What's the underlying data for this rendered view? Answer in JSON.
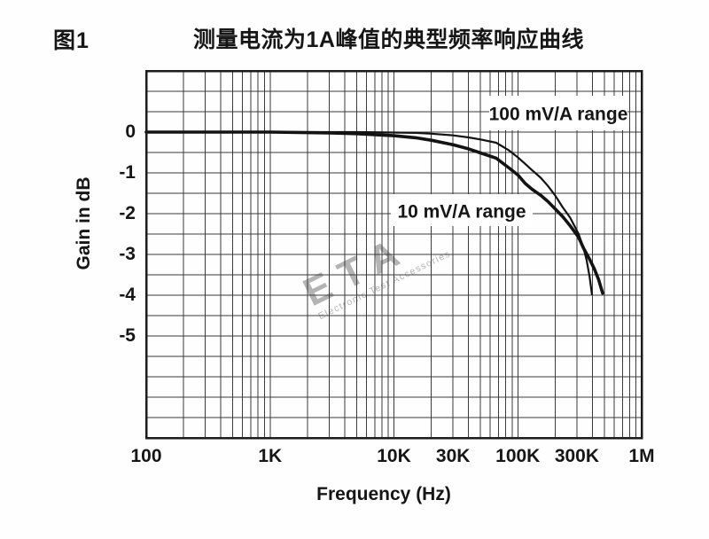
{
  "header": {
    "figure_label": "图1",
    "title": "测量电流为1A峰值的典型频率响应曲线"
  },
  "chart_data": {
    "type": "line",
    "title": "测量电流为1A峰值的典型频率响应曲线",
    "xlabel": "Frequency (Hz)",
    "ylabel": "Gain in dB",
    "x_scale": "log",
    "x_range_hz": [
      100,
      1000000
    ],
    "y_visible_range_db": [
      -7.5,
      1.5
    ],
    "y_grid_step_db": 0.5,
    "grid": true,
    "y_ticks": [
      {
        "label": "0",
        "value": 0
      },
      {
        "label": "-1",
        "value": -1
      },
      {
        "label": "-2",
        "value": -2
      },
      {
        "label": "-3",
        "value": -3
      },
      {
        "label": "-4",
        "value": -4
      },
      {
        "label": "-5",
        "value": -5
      }
    ],
    "x_ticks": [
      {
        "label": "100",
        "hz": 100
      },
      {
        "label": "1K",
        "hz": 1000
      },
      {
        "label": "10K",
        "hz": 10000
      },
      {
        "label": "30K",
        "hz": 30000
      },
      {
        "label": "100K",
        "hz": 100000
      },
      {
        "label": "300K",
        "hz": 300000
      },
      {
        "label": "1M",
        "hz": 1000000
      }
    ],
    "series": [
      {
        "name": "100 mV/A range",
        "stroke_width": 2.2,
        "points": [
          [
            100,
            0
          ],
          [
            1000,
            0
          ],
          [
            5000,
            0
          ],
          [
            10000,
            -0.01
          ],
          [
            15000,
            -0.02
          ],
          [
            20000,
            -0.04
          ],
          [
            30000,
            -0.08
          ],
          [
            40000,
            -0.13
          ],
          [
            50000,
            -0.18
          ],
          [
            67000,
            -0.26
          ],
          [
            85000,
            -0.45
          ],
          [
            100000,
            -0.62
          ],
          [
            115000,
            -0.78
          ],
          [
            130000,
            -0.93
          ],
          [
            153000,
            -1.12
          ],
          [
            175000,
            -1.32
          ],
          [
            200000,
            -1.55
          ],
          [
            230000,
            -1.84
          ],
          [
            265000,
            -2.1
          ],
          [
            310000,
            -2.5
          ],
          [
            340000,
            -2.85
          ],
          [
            360000,
            -3.15
          ],
          [
            380000,
            -3.55
          ],
          [
            397000,
            -3.98
          ]
        ]
      },
      {
        "name": "10 mV/A range",
        "stroke_width": 3.6,
        "points": [
          [
            100,
            0
          ],
          [
            1000,
            0
          ],
          [
            3000,
            -0.02
          ],
          [
            5000,
            -0.04
          ],
          [
            10000,
            -0.09
          ],
          [
            15000,
            -0.14
          ],
          [
            20000,
            -0.2
          ],
          [
            30000,
            -0.31
          ],
          [
            40000,
            -0.41
          ],
          [
            50000,
            -0.51
          ],
          [
            67000,
            -0.64
          ],
          [
            85000,
            -0.88
          ],
          [
            100000,
            -1.05
          ],
          [
            115000,
            -1.26
          ],
          [
            130000,
            -1.4
          ],
          [
            153000,
            -1.55
          ],
          [
            175000,
            -1.7
          ],
          [
            200000,
            -1.88
          ],
          [
            230000,
            -2.07
          ],
          [
            265000,
            -2.3
          ],
          [
            310000,
            -2.58
          ],
          [
            340000,
            -2.85
          ],
          [
            380000,
            -3.12
          ],
          [
            414000,
            -3.35
          ],
          [
            450000,
            -3.62
          ],
          [
            484000,
            -3.95
          ]
        ]
      }
    ],
    "series_labels": [
      {
        "text": "100 mV/A range",
        "position": "upper-right"
      },
      {
        "text": "10 mV/A range",
        "position": "center-left-of-curve"
      }
    ]
  },
  "watermark": {
    "text": "ETA",
    "subtext": "Electronic Test Accessories",
    "color": "#b4b4b4",
    "rotation_deg": -26
  },
  "colors": {
    "background": "#fefefe",
    "grid": "#3b3b3b",
    "border": "#1c1c1c",
    "curve": "#131313",
    "text": "#161616"
  }
}
